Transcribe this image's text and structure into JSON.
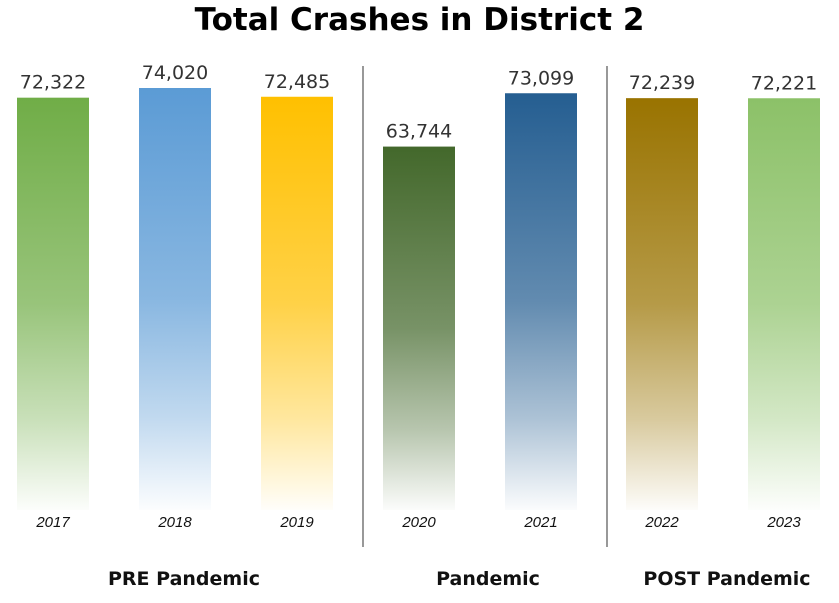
{
  "chart_data": {
    "type": "bar",
    "title": "Total Crashes in District 2",
    "categories": [
      "2017",
      "2018",
      "2019",
      "2020",
      "2021",
      "2022",
      "2023"
    ],
    "values": [
      72322,
      74020,
      72485,
      63744,
      73099,
      72239,
      72221
    ],
    "value_labels": [
      "72,322",
      "74,020",
      "72,485",
      "63,744",
      "73,099",
      "72,239",
      "72,221"
    ],
    "colors": [
      "#70ad47",
      "#5b9bd5",
      "#ffc000",
      "#43682b",
      "#255e91",
      "#997300",
      "#8cc168"
    ],
    "ylim": [
      0,
      74020
    ],
    "groups": [
      {
        "label": "PRE Pandemic",
        "categories": [
          "2017",
          "2018",
          "2019"
        ]
      },
      {
        "label": "Pandemic",
        "categories": [
          "2020",
          "2021"
        ]
      },
      {
        "label": "POST Pandemic",
        "categories": [
          "2022",
          "2023"
        ]
      }
    ],
    "grid": false
  }
}
